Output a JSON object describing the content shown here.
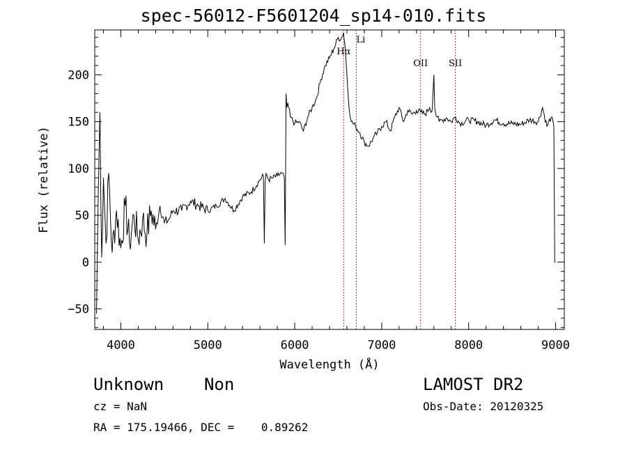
{
  "chart_data": {
    "type": "line",
    "title": "spec-56012-F5601204_sp14-010.fits",
    "xlabel": "Wavelength (Å)",
    "ylabel": "Flux (relative)",
    "xlim": [
      3700,
      9100
    ],
    "ylim": [
      -72,
      248
    ],
    "xticks": [
      4000,
      5000,
      6000,
      7000,
      8000,
      9000
    ],
    "yticks": [
      -50,
      0,
      50,
      100,
      150,
      200
    ],
    "grid": false,
    "line_color": "#000000",
    "marker_color": "#b03030",
    "series": [
      {
        "x": [
          3720,
          3740,
          3760,
          3780,
          3800,
          3830,
          3860,
          3900,
          3950,
          4000,
          4050,
          4100,
          4150,
          4200,
          4250,
          4300,
          4350,
          4400,
          4450,
          4500,
          4550,
          4600,
          4700,
          4800,
          4900,
          5000,
          5100,
          5200,
          5300,
          5400,
          5500,
          5600,
          5640,
          5650,
          5660,
          5670,
          5700,
          5750,
          5800,
          5850,
          5880,
          5890,
          5895,
          5900,
          5910,
          5920,
          5950,
          6000,
          6050,
          6100,
          6150,
          6200,
          6250,
          6300,
          6350,
          6400,
          6450,
          6500,
          6530,
          6560,
          6580,
          6600,
          6620,
          6650,
          6700,
          6750,
          6800,
          6850,
          6900,
          6950,
          7000,
          7050,
          7100,
          7150,
          7200,
          7250,
          7300,
          7350,
          7400,
          7450,
          7500,
          7550,
          7580,
          7600,
          7610,
          7620,
          7640,
          7660,
          7700,
          7750,
          7800,
          7850,
          7900,
          8000,
          8100,
          8200,
          8300,
          8400,
          8500,
          8600,
          8700,
          8800,
          8850,
          8900,
          8950,
          8980,
          8990,
          9000
        ],
        "y": [
          -55,
          70,
          160,
          5,
          90,
          20,
          95,
          10,
          55,
          15,
          60,
          20,
          50,
          25,
          45,
          30,
          55,
          35,
          60,
          42,
          45,
          55,
          55,
          65,
          60,
          55,
          60,
          68,
          55,
          70,
          75,
          88,
          92,
          20,
          85,
          95,
          88,
          90,
          92,
          95,
          90,
          18,
          100,
          180,
          165,
          170,
          155,
          148,
          150,
          140,
          155,
          165,
          175,
          195,
          210,
          218,
          228,
          240,
          238,
          245,
          230,
          200,
          170,
          150,
          145,
          138,
          128,
          124,
          132,
          138,
          145,
          150,
          140,
          155,
          165,
          150,
          162,
          158,
          162,
          160,
          158,
          165,
          162,
          200,
          165,
          158,
          155,
          150,
          152,
          154,
          150,
          155,
          148,
          152,
          150,
          146,
          152,
          148,
          148,
          147,
          152,
          150,
          165,
          145,
          155,
          145,
          0,
          0
        ]
      }
    ],
    "line_markers": [
      {
        "label": "Hα",
        "x": 6563
      },
      {
        "label": "Li",
        "x": 6708
      },
      {
        "label": "OII",
        "x": 7447
      },
      {
        "label": "SII",
        "x": 7847
      }
    ]
  },
  "footer": {
    "left_line": "Unknown    Non",
    "right_line": "LAMOST DR2",
    "cz": "cz = NaN",
    "obs_date": "Obs-Date: 20120325",
    "radec": "RA = 175.19466, DEC =    0.89262"
  }
}
